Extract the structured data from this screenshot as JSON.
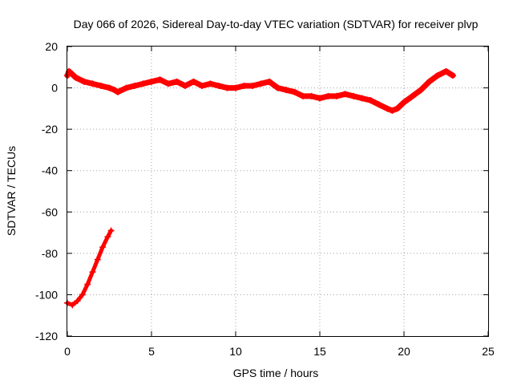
{
  "chart_data": {
    "type": "line",
    "title": "Day 066 of 2026, Sidereal Day-to-day VTEC variation (SDTVAR) for receiver plvp",
    "xlabel": "GPS time / hours",
    "ylabel": "SDTVAR / TECUs",
    "xlim": [
      0,
      25
    ],
    "ylim": [
      -120,
      20
    ],
    "xticks": [
      0,
      5,
      10,
      15,
      20,
      25
    ],
    "yticks": [
      -120,
      -100,
      -80,
      -60,
      -40,
      -20,
      0,
      20
    ],
    "grid": true,
    "color": "#ff0000",
    "series": [
      {
        "name": "main",
        "x": [
          0.0,
          0.1,
          0.5,
          1.0,
          1.5,
          2.0,
          2.5,
          2.8,
          3.0,
          3.5,
          4.0,
          4.5,
          5.0,
          5.5,
          6.0,
          6.5,
          7.0,
          7.5,
          8.0,
          8.5,
          9.0,
          9.5,
          10.0,
          10.5,
          11.0,
          11.5,
          12.0,
          12.5,
          13.0,
          13.5,
          14.0,
          14.5,
          15.0,
          15.5,
          16.0,
          16.5,
          17.0,
          17.5,
          18.0,
          18.5,
          19.0,
          19.3,
          19.6,
          20.0,
          20.5,
          21.0,
          21.5,
          22.0,
          22.5,
          22.9
        ],
        "y": [
          6,
          8,
          5,
          3,
          2,
          1,
          0,
          -1,
          -2,
          0,
          1,
          2,
          3,
          4,
          2,
          3,
          1,
          3,
          1,
          2,
          1,
          0,
          0,
          1,
          1,
          2,
          3,
          0,
          -1,
          -2,
          -4,
          -4,
          -5,
          -4,
          -4,
          -3,
          -4,
          -5,
          -6,
          -8,
          -10,
          -11,
          -10,
          -7,
          -4,
          -1,
          3,
          6,
          8,
          6
        ]
      },
      {
        "name": "early",
        "x": [
          0.0,
          0.3,
          0.6,
          0.9,
          1.2,
          1.5,
          1.8,
          2.1,
          2.4,
          2.6
        ],
        "y": [
          -104,
          -105,
          -103,
          -100,
          -95,
          -89,
          -83,
          -77,
          -72,
          -69
        ]
      }
    ]
  }
}
